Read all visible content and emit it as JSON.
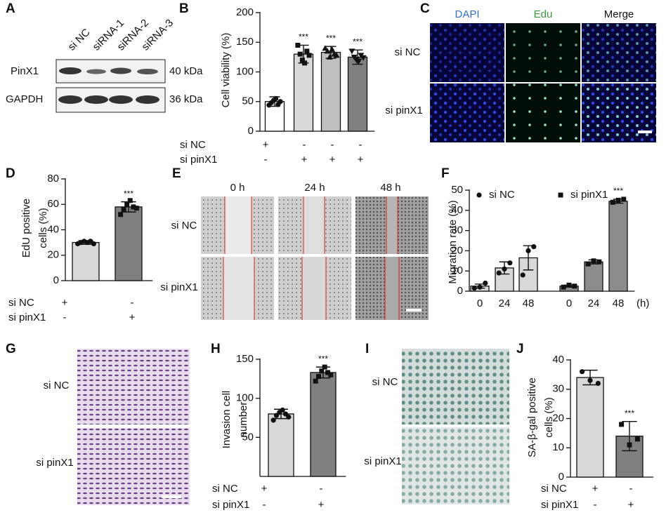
{
  "chart_data": [
    {
      "type": "bar",
      "panel": "B",
      "ylabel": [
        "Cell viability (%)"
      ],
      "ylim": [
        0,
        200
      ],
      "yticks": [
        0,
        50,
        100,
        150,
        200
      ],
      "values": [
        50,
        130,
        133,
        125
      ],
      "errors": [
        8,
        15,
        10,
        12
      ],
      "points": [
        [
          44,
          48,
          52,
          55,
          45,
          50
        ],
        [
          145,
          130,
          120,
          115,
          135,
          128
        ],
        [
          140,
          135,
          125,
          138,
          130,
          128
        ],
        [
          135,
          125,
          120,
          118,
          128,
          124
        ]
      ],
      "colors": [
        "#ffffff",
        "#d9d9d9",
        "#bfbfbf",
        "#7f7f7f"
      ],
      "markers": [
        "circle",
        "square",
        "triangle",
        "triangle-down"
      ],
      "significance": [
        null,
        "***",
        "***",
        "***"
      ],
      "conditions": [
        {
          "name": "si NC",
          "signs": [
            "+",
            "-",
            "-",
            "-"
          ]
        },
        {
          "name": "si pinX1",
          "signs": [
            "-",
            "+",
            "+",
            "+"
          ]
        }
      ]
    },
    {
      "type": "bar",
      "panel": "D",
      "ylabel": [
        "EdU positive",
        "cells (%)"
      ],
      "ylim": [
        0,
        80
      ],
      "yticks": [
        0,
        20,
        40,
        60,
        80
      ],
      "values": [
        30,
        58
      ],
      "errors": [
        1.5,
        4
      ],
      "points": [
        [
          29,
          30,
          31,
          30,
          31,
          29
        ],
        [
          52,
          56,
          60,
          63,
          58,
          57
        ]
      ],
      "colors": [
        "#d9d9d9",
        "#7f7f7f"
      ],
      "markers": [
        "circle",
        "square"
      ],
      "significance": [
        null,
        "***"
      ],
      "conditions": [
        {
          "name": "si NC",
          "signs": [
            "+",
            "-"
          ]
        },
        {
          "name": "si pinX1",
          "signs": [
            "-",
            "+"
          ]
        }
      ]
    },
    {
      "type": "bar",
      "panel": "F",
      "ylabel": [
        "Migration rate (%)"
      ],
      "ylim": [
        0,
        50
      ],
      "yticks": [
        0,
        10,
        20,
        30,
        40,
        50
      ],
      "categories": [
        "0",
        "24",
        "48"
      ],
      "x_unit": "(h)",
      "series": [
        {
          "name": "si NC",
          "color": "#d9d9d9",
          "marker": "circle",
          "values": [
            2.5,
            11.5,
            16.5
          ],
          "errors": [
            1,
            3,
            6
          ],
          "points": [
            [
              1.5,
              2,
              4
            ],
            [
              9,
              11,
              14
            ],
            [
              8,
              20,
              22
            ]
          ],
          "significance": [
            null,
            null,
            null
          ]
        },
        {
          "name": "si pinX1",
          "color": "#8c8c8c",
          "marker": "square",
          "values": [
            2.5,
            14.5,
            44.5
          ],
          "errors": [
            0.5,
            1,
            1
          ],
          "points": [
            [
              2,
              3,
              2.5
            ],
            [
              13.5,
              15,
              14.5
            ],
            [
              44,
              45,
              45.5
            ]
          ],
          "significance": [
            null,
            null,
            "***"
          ]
        }
      ]
    },
    {
      "type": "bar",
      "panel": "H",
      "ylabel": [
        "Invasion cell",
        "number"
      ],
      "ylim": [
        0,
        150
      ],
      "yticks": [
        50,
        100,
        150
      ],
      "values": [
        80,
        133
      ],
      "errors": [
        6,
        7
      ],
      "points": [
        [
          72,
          78,
          82,
          85,
          80,
          76
        ],
        [
          122,
          128,
          135,
          140,
          133,
          130
        ]
      ],
      "colors": [
        "#d9d9d9",
        "#7f7f7f"
      ],
      "markers": [
        "circle",
        "square"
      ],
      "significance": [
        null,
        "***"
      ],
      "conditions": [
        {
          "name": "si NC",
          "signs": [
            "+",
            "-"
          ]
        },
        {
          "name": "si pinX1",
          "signs": [
            "-",
            "+"
          ]
        }
      ]
    },
    {
      "type": "bar",
      "panel": "J",
      "ylabel": [
        "SA-β-gal positive",
        "cells (%)"
      ],
      "ylim": [
        0,
        40
      ],
      "yticks": [
        0,
        10,
        20,
        30,
        40
      ],
      "values": [
        34,
        14
      ],
      "errors": [
        2.5,
        5
      ],
      "points": [
        [
          36,
          33,
          32
        ],
        [
          18,
          11,
          13
        ]
      ],
      "colors": [
        "#d9d9d9",
        "#7f7f7f"
      ],
      "markers": [
        "circle",
        "square"
      ],
      "significance": [
        null,
        "***"
      ],
      "conditions": [
        {
          "name": "si NC",
          "signs": [
            "+",
            "-"
          ]
        },
        {
          "name": "si pinX1",
          "signs": [
            "-",
            "+"
          ]
        }
      ]
    }
  ],
  "panels": {
    "A": {
      "label": "A",
      "lanes": [
        "si NC",
        "siRNA-1",
        "siRNA-2",
        "siRNA-3"
      ],
      "rows": [
        {
          "name": "PinX1",
          "size": "40 kDa"
        },
        {
          "name": "GAPDH",
          "size": "36 kDa"
        }
      ]
    },
    "C": {
      "label": "C",
      "columns": [
        "DAPI",
        "Edu",
        "Merge"
      ],
      "rows": [
        "si NC",
        "si pinX1"
      ]
    },
    "E": {
      "label": "E",
      "columns": [
        "0 h",
        "24 h",
        "48 h"
      ],
      "rows": [
        "si NC",
        "si pinX1"
      ]
    },
    "G": {
      "label": "G",
      "rows": [
        "si NC",
        "si pinX1"
      ]
    },
    "I": {
      "label": "I",
      "rows": [
        "si NC",
        "si pinX1"
      ]
    }
  }
}
